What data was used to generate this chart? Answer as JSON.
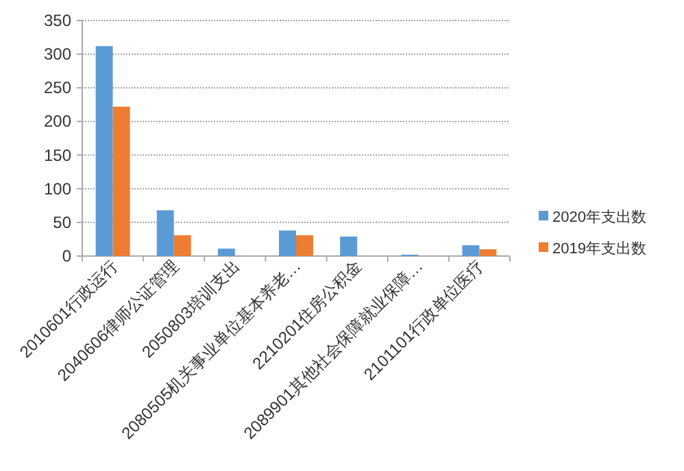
{
  "chart_data": {
    "type": "bar",
    "categories": [
      "2010601行政运行",
      "2040606律师公证管理",
      "2050803培训支出",
      "2080505机关事业单位基本养老…",
      "2210201住房公积金",
      "2089901其他社会保障就业保障…",
      "2101101行政单位医疗"
    ],
    "series": [
      {
        "name": "2020年支出数",
        "color": "#5b9bd5",
        "values": [
          312,
          68,
          11,
          38,
          29,
          2,
          16
        ]
      },
      {
        "name": "2019年支出数",
        "color": "#ed7d31",
        "values": [
          222,
          31,
          0,
          31,
          0,
          0,
          10
        ]
      }
    ],
    "ylim": [
      0,
      350
    ],
    "yticks": [
      0,
      50,
      100,
      150,
      200,
      250,
      300,
      350
    ],
    "grid": "y",
    "legend": "right"
  }
}
